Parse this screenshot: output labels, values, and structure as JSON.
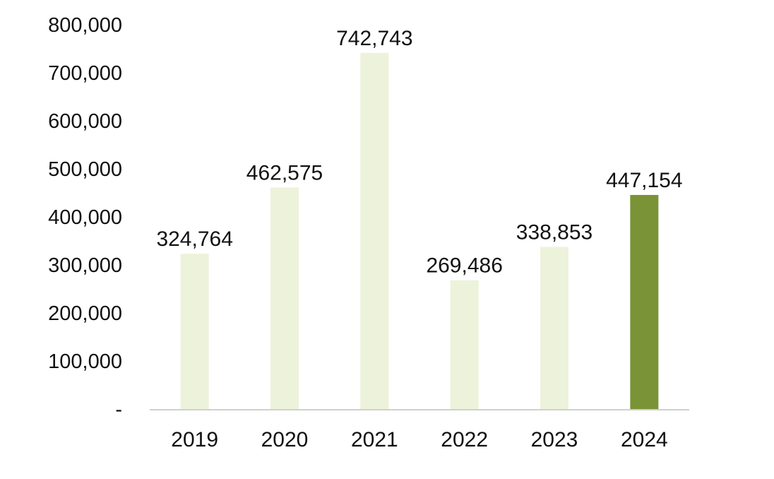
{
  "chart_data": {
    "type": "bar",
    "title": "",
    "xlabel": "",
    "ylabel": "",
    "categories": [
      "2019",
      "2020",
      "2021",
      "2022",
      "2023",
      "2024"
    ],
    "values": [
      324764,
      462575,
      742743,
      269486,
      338853,
      447154
    ],
    "data_labels": [
      "324,764",
      "462,575",
      "742,743",
      "269,486",
      "338,853",
      "447,154"
    ],
    "ylim": [
      0,
      800000
    ],
    "y_ticks": [
      0,
      100000,
      200000,
      300000,
      400000,
      500000,
      600000,
      700000,
      800000
    ],
    "y_tick_labels": [
      "-",
      "100,000",
      "200,000",
      "300,000",
      "400,000",
      "500,000",
      "600,000",
      "700,000",
      "800,000"
    ],
    "grid": false,
    "legend": "none",
    "colors": {
      "bar": "#edf2da",
      "highlight": "#7a9337",
      "axis": "#d0d0d0"
    },
    "highlight_index": 5
  }
}
